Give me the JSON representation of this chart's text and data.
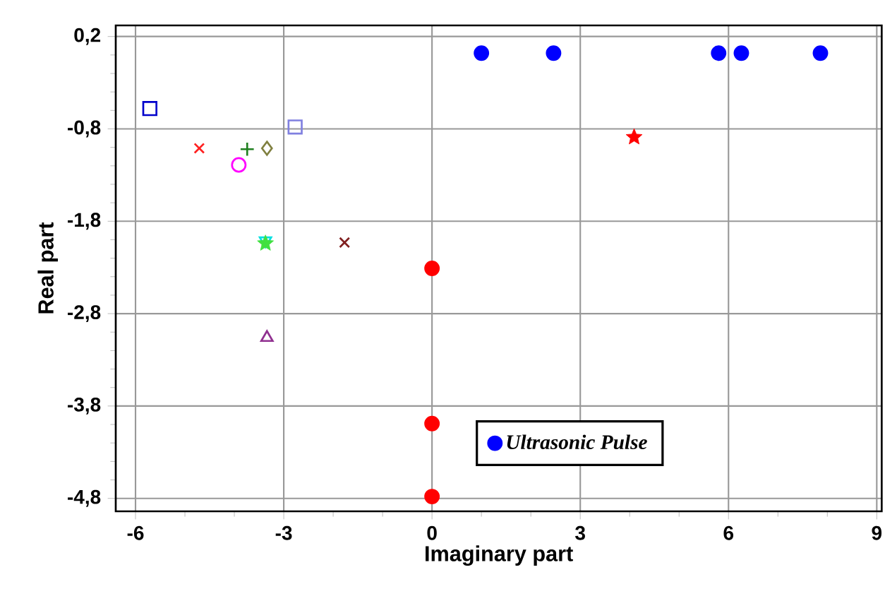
{
  "chart_data": {
    "type": "scatter",
    "xlabel": "Imaginary part",
    "ylabel": "Real part",
    "xlim": [
      -6.4,
      9.1
    ],
    "ylim": [
      -4.94,
      0.32
    ],
    "xticks": [
      -6,
      -3,
      0,
      3,
      6,
      9
    ],
    "yticks": [
      {
        "value": 0.2,
        "label": "0,2"
      },
      {
        "value": -0.8,
        "label": "-0,8"
      },
      {
        "value": -1.8,
        "label": "-1,8"
      },
      {
        "value": -2.8,
        "label": "-2,8"
      },
      {
        "value": -3.8,
        "label": "-3,8"
      },
      {
        "value": -4.8,
        "label": "-4,8"
      }
    ],
    "grid": true,
    "legend": "bottom right",
    "series": [
      {
        "name": "Ultrasonic Pulse",
        "color": "#0000ff",
        "marker": "circle",
        "x": [
          1.0,
          2.46,
          5.8,
          6.26,
          7.86
        ],
        "values": [
          0.02,
          0.02,
          0.02,
          0.02,
          0.02
        ]
      },
      {
        "color": "#ff0000",
        "marker": "circle",
        "x": [
          0,
          0,
          0
        ],
        "values": [
          -2.31,
          -3.99,
          -4.78
        ]
      },
      {
        "color": "#ff0000",
        "marker": "star",
        "x": [
          4.09
        ],
        "values": [
          -0.89
        ]
      },
      {
        "color": "#0000cc",
        "marker": "square",
        "x": [
          -5.71
        ],
        "values": [
          -0.58
        ]
      },
      {
        "color": "#8080e0",
        "marker": "square",
        "x": [
          -2.77
        ],
        "values": [
          -0.78
        ]
      },
      {
        "color": "#ff2020",
        "marker": "cross",
        "x": [
          -4.71
        ],
        "values": [
          -1.01
        ]
      },
      {
        "color": "#208020",
        "marker": "plus",
        "x": [
          -3.74
        ],
        "values": [
          -1.02
        ]
      },
      {
        "color": "#808040",
        "marker": "diamond",
        "x": [
          -3.34
        ],
        "values": [
          -1.01
        ]
      },
      {
        "color": "#ff00ff",
        "marker": "open circle",
        "x": [
          -3.91
        ],
        "values": [
          -1.19
        ]
      },
      {
        "color": "#00e0e0",
        "marker": "triangle down",
        "x": [
          -3.37
        ],
        "values": [
          -2.01
        ]
      },
      {
        "color": "#40e040",
        "marker": "star",
        "x": [
          -3.37
        ],
        "values": [
          -2.04
        ]
      },
      {
        "color": "#802020",
        "marker": "cross",
        "x": [
          -1.77
        ],
        "values": [
          -2.03
        ]
      },
      {
        "color": "#903090",
        "marker": "triangle",
        "x": [
          -3.34
        ],
        "values": [
          -3.06
        ]
      }
    ]
  }
}
